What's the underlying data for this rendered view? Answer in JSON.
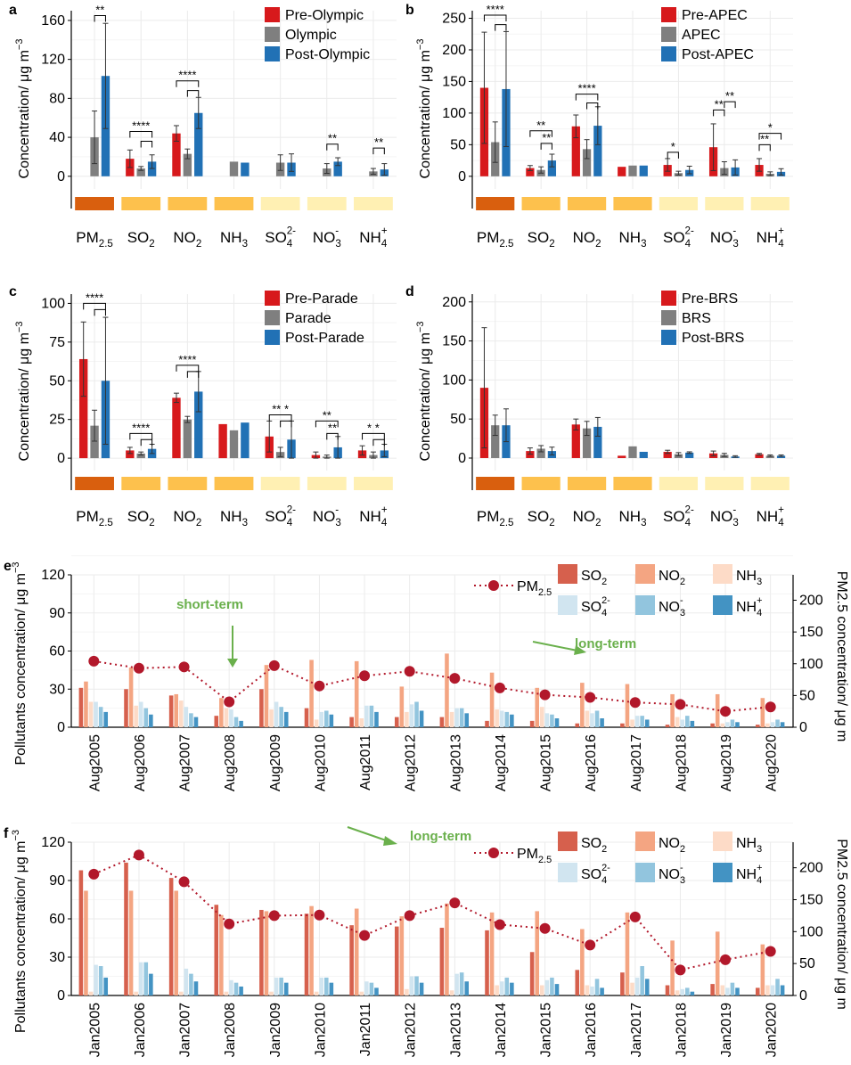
{
  "colors": {
    "pre": "#d7191c",
    "event": "#7f7f7f",
    "post": "#2171b5",
    "grid": "#ebebeb",
    "axis": "#000000",
    "pm": "#b2182b",
    "so2": "#d6604d",
    "no2": "#f4a582",
    "nh3": "#fddbc7",
    "so4": "#d1e5f0",
    "no3": "#92c5de",
    "nh4": "#4393c3",
    "strip_dark": "#d95f0e",
    "strip_mid": "#fdc14d",
    "strip_light": "#fff0b3",
    "annot": "#6ab04c"
  },
  "y_axis_label_top": "Concentration/ μg m",
  "y_axis_label_sup": "−3",
  "pollutants": [
    {
      "base": "PM",
      "sub": "2.5",
      "sup": ""
    },
    {
      "base": "SO",
      "sub": "2",
      "sup": ""
    },
    {
      "base": "NO",
      "sub": "2",
      "sup": ""
    },
    {
      "base": "NH",
      "sub": "3",
      "sup": ""
    },
    {
      "base": "SO",
      "sub": "4",
      "sup": "2-"
    },
    {
      "base": "NO",
      "sub": "3",
      "sup": "-"
    },
    {
      "base": "NH",
      "sub": "4",
      "sup": "+"
    }
  ],
  "strip_levels": [
    "dark",
    "mid",
    "mid",
    "mid",
    "light",
    "light",
    "light"
  ],
  "chart_data": [
    {
      "panel": "a",
      "type": "bar",
      "legend": [
        "Pre-Olympic",
        "Olympic",
        "Post-Olympic"
      ],
      "ylim": [
        -13,
        170
      ],
      "yticks": [
        0,
        40,
        80,
        120,
        160
      ],
      "values": [
        [
          null,
          40,
          103
        ],
        [
          18,
          8,
          15
        ],
        [
          44,
          23,
          65
        ],
        [
          null,
          15,
          14
        ],
        [
          null,
          14,
          14
        ],
        [
          null,
          8,
          15
        ],
        [
          null,
          5,
          7
        ]
      ],
      "errors": [
        [
          null,
          27,
          54
        ],
        [
          9,
          2,
          7
        ],
        [
          8,
          5,
          16
        ],
        [
          null,
          0,
          0
        ],
        [
          null,
          8,
          9
        ],
        [
          null,
          5,
          4
        ],
        [
          null,
          3,
          6
        ]
      ],
      "sig": [
        {
          "cat": 0,
          "levels": [
            {
              "from": 1,
              "to": 2,
              "y": 165,
              "label": "**"
            }
          ]
        },
        {
          "cat": 1,
          "levels": [
            {
              "from": 0,
              "to": 2,
              "y": 46,
              "label": "****"
            },
            {
              "from": 1,
              "to": 2,
              "y": 36,
              "label": ""
            }
          ]
        },
        {
          "cat": 2,
          "levels": [
            {
              "from": 0,
              "to": 2,
              "y": 98,
              "label": "****"
            },
            {
              "from": 1,
              "to": 2,
              "y": 88,
              "label": ""
            }
          ]
        },
        {
          "cat": 5,
          "levels": [
            {
              "from": 1,
              "to": 2,
              "y": 33,
              "label": "**"
            }
          ]
        },
        {
          "cat": 6,
          "levels": [
            {
              "from": 1,
              "to": 2,
              "y": 29,
              "label": "**"
            }
          ]
        }
      ]
    },
    {
      "panel": "b",
      "type": "bar",
      "legend": [
        "Pre-APEC",
        "APEC",
        "Post-APEC"
      ],
      "ylim": [
        -20,
        262
      ],
      "yticks": [
        0,
        50,
        100,
        150,
        200,
        250
      ],
      "values": [
        [
          140,
          54,
          138
        ],
        [
          13,
          10,
          25
        ],
        [
          79,
          43,
          80
        ],
        [
          15,
          17,
          17
        ],
        [
          18,
          5,
          10
        ],
        [
          46,
          13,
          14
        ],
        [
          18,
          4,
          7
        ]
      ],
      "errors": [
        [
          88,
          32,
          91
        ],
        [
          4,
          5,
          10
        ],
        [
          18,
          15,
          30
        ],
        [
          0,
          0,
          0
        ],
        [
          10,
          3,
          6
        ],
        [
          37,
          10,
          12
        ],
        [
          10,
          3,
          5
        ]
      ],
      "sig": [
        {
          "cat": 0,
          "levels": [
            {
              "from": 0,
              "to": 2,
              "y": 255,
              "label": "****"
            },
            {
              "from": 1,
              "to": 2,
              "y": 240,
              "label": ""
            }
          ]
        },
        {
          "cat": 1,
          "levels": [
            {
              "from": 0,
              "to": 2,
              "y": 72,
              "label": "**"
            },
            {
              "from": 1,
              "to": 2,
              "y": 52,
              "label": "**"
            }
          ]
        },
        {
          "cat": 2,
          "levels": [
            {
              "from": 0,
              "to": 2,
              "y": 130,
              "label": "****"
            },
            {
              "from": 1,
              "to": 2,
              "y": 116,
              "label": ""
            }
          ]
        },
        {
          "cat": 4,
          "levels": [
            {
              "from": 0,
              "to": 1,
              "y": 38,
              "label": "*"
            }
          ]
        },
        {
          "cat": 5,
          "levels": [
            {
              "from": 1,
              "to": 2,
              "y": 118,
              "label": "**"
            },
            {
              "from": 0,
              "to": 1,
              "y": 105,
              "label": "**"
            }
          ]
        },
        {
          "cat": 6,
          "levels": [
            {
              "from": 0,
              "to": 2,
              "y": 68,
              "label": "*"
            },
            {
              "from": 0,
              "to": 1,
              "y": 50,
              "label": "**"
            }
          ]
        }
      ]
    },
    {
      "panel": "c",
      "type": "bar",
      "legend": [
        "Pre-Parade",
        "Parade",
        "Post-Parade"
      ],
      "ylim": [
        -8,
        106
      ],
      "yticks": [
        0,
        25,
        50,
        75,
        100
      ],
      "values": [
        [
          64,
          21,
          50
        ],
        [
          5,
          3,
          6
        ],
        [
          39,
          25,
          43
        ],
        [
          22,
          18,
          23
        ],
        [
          14,
          4,
          12
        ],
        [
          2,
          1,
          7
        ],
        [
          5,
          2,
          5
        ]
      ],
      "errors": [
        [
          24,
          10,
          41
        ],
        [
          2,
          1,
          3
        ],
        [
          3,
          2,
          13
        ],
        [
          0,
          0,
          0
        ],
        [
          10,
          3,
          12
        ],
        [
          2,
          1,
          7
        ],
        [
          3,
          2,
          4
        ]
      ],
      "sig": [
        {
          "cat": 0,
          "levels": [
            {
              "from": 0,
              "to": 2,
              "y": 100,
              "label": "****"
            },
            {
              "from": 1,
              "to": 2,
              "y": 96,
              "label": ""
            }
          ]
        },
        {
          "cat": 1,
          "levels": [
            {
              "from": 0,
              "to": 2,
              "y": 16,
              "label": "****"
            },
            {
              "from": 1,
              "to": 2,
              "y": 12,
              "label": ""
            }
          ]
        },
        {
          "cat": 2,
          "levels": [
            {
              "from": 0,
              "to": 2,
              "y": 60,
              "label": "****"
            },
            {
              "from": 1,
              "to": 2,
              "y": 56,
              "label": ""
            }
          ]
        },
        {
          "cat": 4,
          "levels": [
            {
              "from": 0,
              "to": 2,
              "y": 28,
              "label": "** *"
            },
            {
              "from": 1,
              "to": 2,
              "y": 24,
              "label": ""
            }
          ]
        },
        {
          "cat": 5,
          "levels": [
            {
              "from": 0,
              "to": 2,
              "y": 24,
              "label": "**"
            },
            {
              "from": 1,
              "to": 2,
              "y": 16,
              "label": "**"
            }
          ]
        },
        {
          "cat": 6,
          "levels": [
            {
              "from": 0,
              "to": 2,
              "y": 16,
              "label": "* *"
            },
            {
              "from": 1,
              "to": 2,
              "y": 12,
              "label": ""
            }
          ]
        }
      ]
    },
    {
      "panel": "d",
      "type": "bar",
      "legend": [
        "Pre-BRS",
        "BRS",
        "Post-BRS"
      ],
      "ylim": [
        -16,
        210
      ],
      "yticks": [
        0,
        50,
        100,
        150,
        200
      ],
      "values": [
        [
          90,
          42,
          42
        ],
        [
          9,
          12,
          9
        ],
        [
          43,
          38,
          40
        ],
        [
          3,
          15,
          8
        ],
        [
          8,
          5,
          7
        ],
        [
          6,
          4,
          2
        ],
        [
          5,
          3,
          3
        ]
      ],
      "errors": [
        [
          77,
          13,
          21
        ],
        [
          4,
          4,
          5
        ],
        [
          7,
          9,
          12
        ],
        [
          0,
          0,
          0
        ],
        [
          2,
          2,
          1
        ],
        [
          3,
          2,
          1
        ],
        [
          1,
          1,
          1
        ]
      ],
      "sig": []
    },
    {
      "panel": "e",
      "type": "bar+line",
      "ylabel_left": "Pollutants concentration/ μg m",
      "ylabel_right": "PM2.5 concentration/ μg m",
      "ylim_left": [
        0,
        120
      ],
      "yticks_left": [
        0,
        30,
        60,
        90,
        120
      ],
      "ylim_right": [
        0,
        240
      ],
      "yticks_right": [
        0,
        50,
        100,
        150,
        200
      ],
      "categories": [
        "Aug2005",
        "Aug2006",
        "Aug2007",
        "Aug2008",
        "Aug2009",
        "Aug2010",
        "Aug2011",
        "Aug2012",
        "Aug2013",
        "Aug2014",
        "Aug2015",
        "Aug2016",
        "Aug2017",
        "Aug2018",
        "Aug2019",
        "Aug2020"
      ],
      "series": [
        {
          "name": "SO2",
          "values": [
            31,
            30,
            25,
            9,
            30,
            15,
            8,
            8,
            8,
            5,
            5,
            3,
            3,
            2,
            3,
            2
          ]
        },
        {
          "name": "NO2",
          "values": [
            36,
            47,
            26,
            23,
            49,
            53,
            52,
            32,
            58,
            43,
            31,
            35,
            34,
            26,
            26,
            23
          ]
        },
        {
          "name": "NH3",
          "values": [
            20,
            17,
            21,
            15,
            14,
            6,
            7,
            12,
            12,
            14,
            16,
            13,
            6,
            8,
            3,
            3
          ]
        },
        {
          "name": "SO4",
          "values": [
            20,
            20,
            16,
            14,
            20,
            12,
            17,
            18,
            15,
            13,
            11,
            11,
            9,
            6,
            4,
            4
          ]
        },
        {
          "name": "NO3",
          "values": [
            16,
            15,
            11,
            8,
            16,
            13,
            17,
            20,
            15,
            12,
            10,
            13,
            9,
            9,
            6,
            6
          ]
        },
        {
          "name": "NH4",
          "values": [
            12,
            10,
            8,
            5,
            12,
            10,
            12,
            13,
            11,
            10,
            7,
            7,
            6,
            5,
            4,
            4
          ]
        }
      ],
      "pm25": [
        104,
        93,
        95,
        40,
        97,
        65,
        81,
        88,
        77,
        62,
        51,
        47,
        39,
        36,
        25,
        32
      ],
      "legend": {
        "pm": "PM",
        "pm_sub": "2.5"
      },
      "annotations": [
        "short-term",
        "long-term"
      ]
    },
    {
      "panel": "f",
      "type": "bar+line",
      "ylabel_left": "Pollutants concentration/ μg m",
      "ylabel_right": "PM2.5 concentration/ μg m",
      "ylim_left": [
        0,
        120
      ],
      "yticks_left": [
        0,
        30,
        60,
        90,
        120
      ],
      "ylim_right": [
        0,
        240
      ],
      "yticks_right": [
        0,
        50,
        100,
        150,
        200
      ],
      "categories": [
        "Jan2005",
        "Jan2006",
        "Jan2007",
        "Jan2008",
        "Jan2009",
        "Jan2010",
        "Jan2011",
        "Jan2012",
        "Jan2013",
        "Jan2014",
        "Jan2015",
        "Jan2016",
        "Jan2017",
        "Jan2018",
        "Jan2019",
        "Jan2020"
      ],
      "series": [
        {
          "name": "SO2",
          "values": [
            98,
            104,
            92,
            71,
            67,
            64,
            55,
            54,
            53,
            51,
            34,
            20,
            18,
            8,
            9,
            6
          ]
        },
        {
          "name": "NO2",
          "values": [
            82,
            82,
            82,
            63,
            66,
            70,
            68,
            62,
            72,
            65,
            66,
            52,
            65,
            43,
            50,
            40
          ]
        },
        {
          "name": "NH3",
          "values": [
            3,
            3,
            3,
            3,
            3,
            3,
            3,
            5,
            4,
            8,
            8,
            8,
            10,
            4,
            8,
            8
          ]
        },
        {
          "name": "SO4",
          "values": [
            24,
            26,
            21,
            12,
            14,
            14,
            11,
            15,
            17,
            11,
            12,
            7,
            14,
            5,
            6,
            8
          ]
        },
        {
          "name": "NO3",
          "values": [
            23,
            26,
            17,
            10,
            14,
            14,
            10,
            15,
            18,
            14,
            14,
            13,
            23,
            6,
            10,
            13
          ]
        },
        {
          "name": "NH4",
          "values": [
            14,
            17,
            11,
            7,
            10,
            10,
            6,
            10,
            11,
            10,
            9,
            6,
            13,
            3,
            6,
            8
          ]
        }
      ],
      "pm25": [
        190,
        220,
        178,
        112,
        125,
        126,
        94,
        125,
        145,
        111,
        105,
        79,
        123,
        40,
        56,
        69
      ],
      "legend": {
        "pm": "PM",
        "pm_sub": "2.5"
      },
      "annotations": [
        "long-term"
      ]
    }
  ]
}
